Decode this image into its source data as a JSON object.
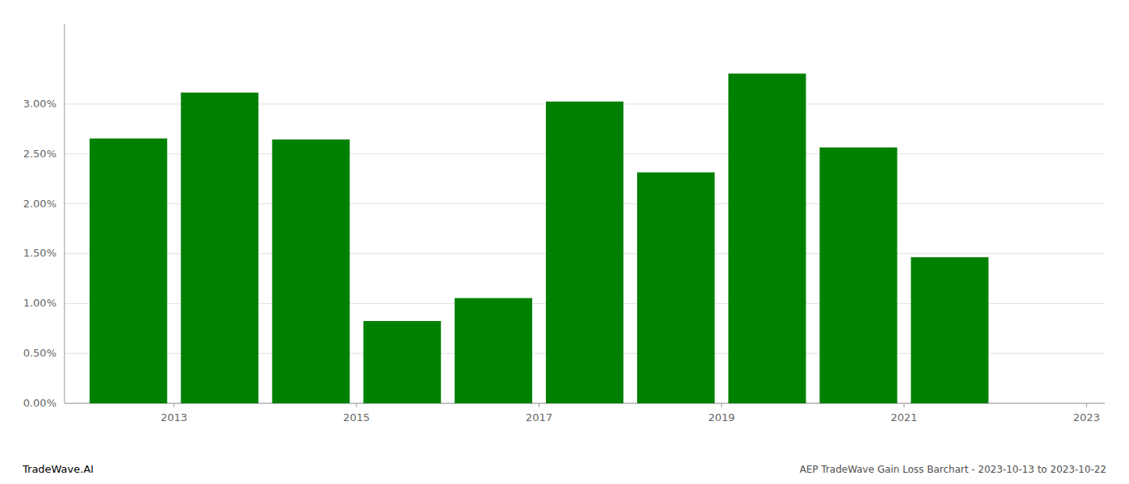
{
  "chart_data": {
    "type": "bar",
    "title": "AEP TradeWave Gain Loss Barchart - 2023-10-13 to 2023-10-22",
    "annotations": [
      "TradeWave.AI"
    ],
    "x": [
      2013,
      2014,
      2015,
      2016,
      2017,
      2018,
      2019,
      2020,
      2021,
      2022
    ],
    "values": [
      0.02655,
      0.03115,
      0.02645,
      0.00825,
      0.01055,
      0.03025,
      0.02315,
      0.03305,
      0.02565,
      0.01465
    ],
    "color": "#008000",
    "xlim": [
      2012.3,
      2023.7
    ],
    "xticks": [
      {
        "value": 2013.5,
        "label": "2013"
      },
      {
        "value": 2015.5,
        "label": "2015"
      },
      {
        "value": 2017.5,
        "label": "2017"
      },
      {
        "value": 2019.5,
        "label": "2019"
      },
      {
        "value": 2021.5,
        "label": "2021"
      },
      {
        "value": 2023.5,
        "label": "2023"
      }
    ],
    "ylim": [
      0,
      0.038
    ],
    "yticks": [
      {
        "value": 0.0,
        "label": "0.00%"
      },
      {
        "value": 0.005,
        "label": "0.50%"
      },
      {
        "value": 0.01,
        "label": "1.00%"
      },
      {
        "value": 0.015,
        "label": "1.50%"
      },
      {
        "value": 0.02,
        "label": "2.00%"
      },
      {
        "value": 0.025,
        "label": "2.50%"
      },
      {
        "value": 0.03,
        "label": "3.00%"
      }
    ],
    "grid": true
  }
}
